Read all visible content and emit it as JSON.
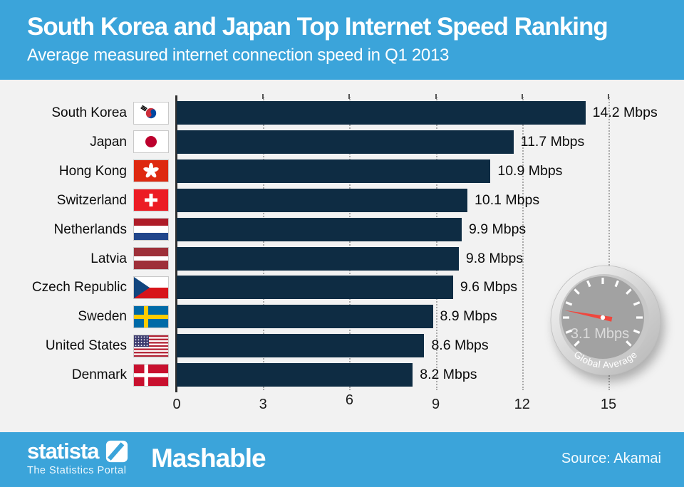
{
  "header": {
    "title": "South Korea and Japan Top Internet Speed Ranking",
    "subtitle": "Average measured internet connection speed in Q1 2013"
  },
  "chart_data": {
    "type": "bar",
    "orientation": "horizontal",
    "unit": "Mbps",
    "categories": [
      "South Korea",
      "Japan",
      "Hong Kong",
      "Switzerland",
      "Netherlands",
      "Latvia",
      "Czech Republic",
      "Sweden",
      "United States",
      "Denmark"
    ],
    "values": [
      14.2,
      11.7,
      10.9,
      10.1,
      9.9,
      9.8,
      9.6,
      8.9,
      8.6,
      8.2
    ],
    "value_label_suffix": " Mbps",
    "flags": [
      "kr",
      "jp",
      "hk",
      "ch",
      "nl",
      "lv",
      "cz",
      "se",
      "us",
      "dk"
    ],
    "x_ticks": [
      0,
      3,
      6,
      9,
      12,
      15
    ],
    "x_tick_label_offsets": [
      0,
      0,
      -6,
      0,
      0,
      0
    ],
    "xlim": [
      0,
      15
    ],
    "grid": "dotted-vertical",
    "gauge": {
      "value": 3.1,
      "min": 0,
      "max": 15,
      "value_label": "3.1 Mbps",
      "label": "Global Average"
    }
  },
  "colors": {
    "header_bg": "#3ba4da",
    "bar": "#0e2c43",
    "chart_bg": "#f2f2f2",
    "needle": "#f0473e",
    "gauge_face": "#a2a2a2"
  },
  "footer": {
    "statista_name": "statista",
    "statista_tagline": "The Statistics Portal",
    "partner": "Mashable",
    "source": "Source: Akamai"
  }
}
